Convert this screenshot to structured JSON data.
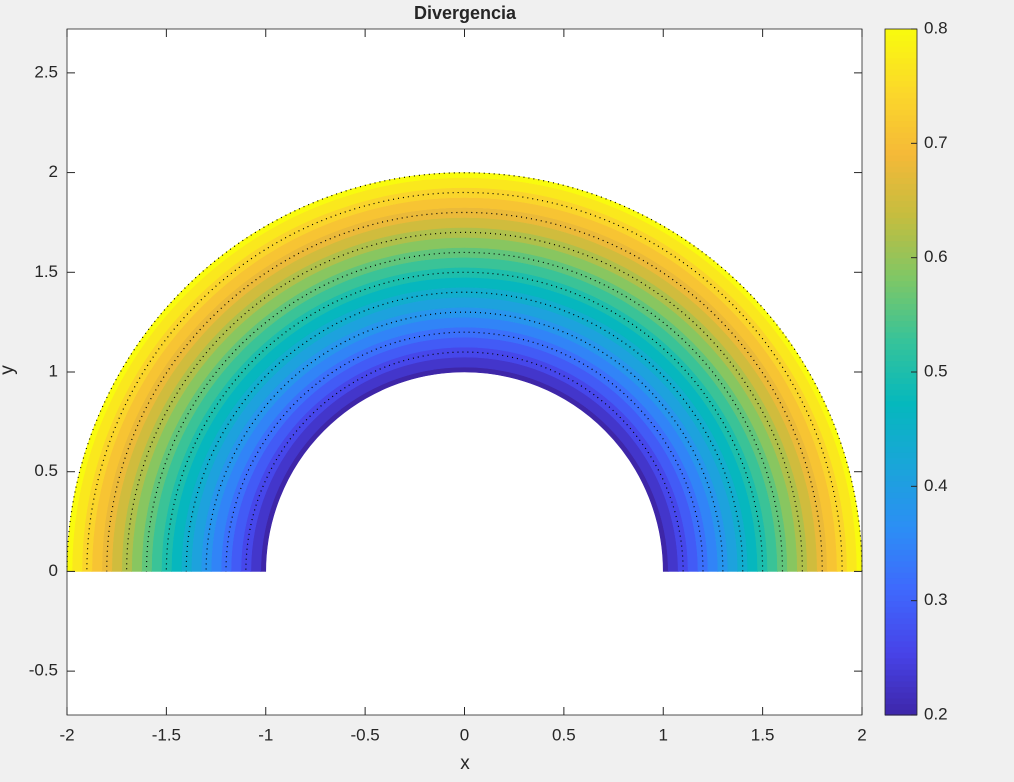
{
  "chart_data": {
    "type": "annulus-field",
    "title": "Divergencia",
    "x_label": "x",
    "y_label": "y",
    "xlim": [
      -2,
      2
    ],
    "ylim": [
      -0.72,
      2.72
    ],
    "xticks": [
      -2,
      -1.5,
      -1,
      -0.5,
      0,
      0.5,
      1,
      1.5,
      2
    ],
    "yticks": [
      -0.5,
      0,
      0.5,
      1,
      1.5,
      2,
      2.5
    ],
    "radii": [
      1,
      1.05,
      1.1,
      1.15,
      1.2,
      1.25,
      1.3,
      1.35,
      1.4,
      1.45,
      1.5,
      1.55,
      1.6,
      1.65,
      1.7,
      1.75,
      1.8,
      1.85,
      1.9,
      1.95,
      2
    ],
    "values": [
      0.2,
      0.23,
      0.26,
      0.29,
      0.32,
      0.35,
      0.38,
      0.41,
      0.44,
      0.47,
      0.5,
      0.53,
      0.56,
      0.59,
      0.62,
      0.65,
      0.68,
      0.71,
      0.74,
      0.77,
      0.8
    ],
    "clim": [
      0.2,
      0.8
    ],
    "cticks": [
      0.2,
      0.3,
      0.4,
      0.5,
      0.6,
      0.7,
      0.8
    ],
    "colormap": [
      "#3e26a8",
      "#4743e8",
      "#3f68fd",
      "#2c8ef5",
      "#1aa5d9",
      "#05b8bd",
      "#36c39a",
      "#7ec766",
      "#c4bd3f",
      "#f5b938",
      "#fbd82a",
      "#f9fb0e"
    ]
  }
}
